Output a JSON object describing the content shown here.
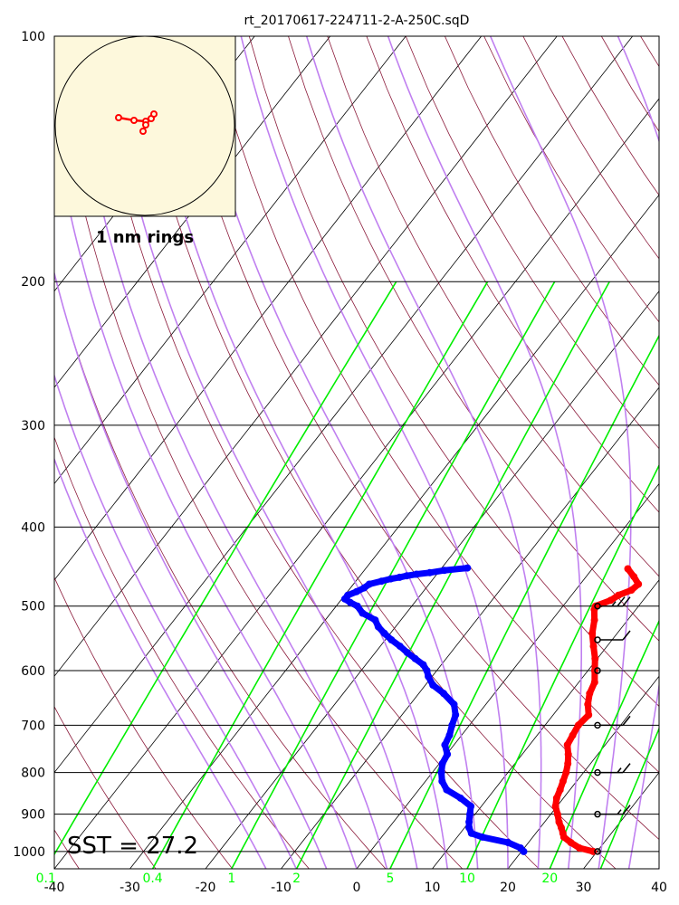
{
  "chart_data": {
    "type": "skew-t log-p sounding",
    "title": "rt_20170617-224711-2-A-250C.sqD",
    "pressure_ticks": [
      "100",
      "200",
      "300",
      "400",
      "500",
      "600",
      "700",
      "800",
      "900",
      "1000"
    ],
    "pressure_values": [
      100,
      200,
      300,
      400,
      500,
      600,
      700,
      800,
      900,
      1000
    ],
    "temperature_ticks": [
      "-40",
      "-30",
      "-20",
      "-10",
      "0",
      "10",
      "20",
      "30",
      "40"
    ],
    "temperature_values": [
      -40,
      -30,
      -20,
      -10,
      0,
      10,
      20,
      30,
      40
    ],
    "xlim": [
      -40,
      40
    ],
    "ylim": [
      1050,
      100
    ],
    "mixing_ratio_ticks": [
      "0.1",
      "0.4",
      "1",
      "2",
      "5",
      "10",
      "20"
    ],
    "mixing_ratio_values": [
      0.1,
      0.4,
      1,
      2,
      5,
      10,
      20
    ],
    "background_lines": {
      "isotherms": "black",
      "dry_adiabats": "maroon",
      "moist_adiabats": "violet",
      "mixing_ratio_lines": "lime"
    },
    "series": [
      {
        "name": "temperature",
        "color": "#ff0000",
        "points": [
          [
            1000,
            29.5
          ],
          [
            990,
            27.3
          ],
          [
            975,
            25.6
          ],
          [
            960,
            24.1
          ],
          [
            950,
            23.6
          ],
          [
            935,
            22.8
          ],
          [
            920,
            21.9
          ],
          [
            900,
            20.9
          ],
          [
            880,
            19.8
          ],
          [
            860,
            19.1
          ],
          [
            840,
            18.7
          ],
          [
            820,
            18.2
          ],
          [
            800,
            17.7
          ],
          [
            780,
            17.0
          ],
          [
            760,
            16.1
          ],
          [
            740,
            15.0
          ],
          [
            720,
            14.7
          ],
          [
            700,
            14.4
          ],
          [
            680,
            14.7
          ],
          [
            660,
            13.5
          ],
          [
            640,
            12.6
          ],
          [
            620,
            12.1
          ],
          [
            600,
            10.9
          ],
          [
            580,
            9.7
          ],
          [
            560,
            8.2
          ],
          [
            540,
            6.7
          ],
          [
            520,
            5.6
          ],
          [
            505,
            4.5
          ],
          [
            500,
            4.3
          ],
          [
            492,
            5.7
          ],
          [
            485,
            6.2
          ],
          [
            478,
            7.4
          ],
          [
            470,
            7.7
          ],
          [
            460,
            6.3
          ],
          [
            450,
            4.7
          ]
        ]
      },
      {
        "name": "dewpoint",
        "color": "#0000ff",
        "points": [
          [
            1000,
            20.3
          ],
          [
            990,
            19.5
          ],
          [
            975,
            17.3
          ],
          [
            960,
            13.3
          ],
          [
            950,
            11.5
          ],
          [
            935,
            10.6
          ],
          [
            920,
            10.0
          ],
          [
            900,
            9.3
          ],
          [
            880,
            8.6
          ],
          [
            860,
            6.4
          ],
          [
            840,
            3.7
          ],
          [
            820,
            2.2
          ],
          [
            800,
            1.2
          ],
          [
            780,
            0.4
          ],
          [
            760,
            0.1
          ],
          [
            740,
            -1.2
          ],
          [
            720,
            -1.6
          ],
          [
            700,
            -2.3
          ],
          [
            680,
            -2.9
          ],
          [
            660,
            -4.2
          ],
          [
            640,
            -6.7
          ],
          [
            625,
            -9.0
          ],
          [
            610,
            -10.5
          ],
          [
            600,
            -11.3
          ],
          [
            590,
            -12.4
          ],
          [
            580,
            -14.1
          ],
          [
            570,
            -15.8
          ],
          [
            560,
            -17.4
          ],
          [
            550,
            -19.2
          ],
          [
            540,
            -20.8
          ],
          [
            530,
            -22.3
          ],
          [
            520,
            -23.4
          ],
          [
            510,
            -25.8
          ],
          [
            500,
            -27.2
          ],
          [
            495,
            -28.5
          ],
          [
            490,
            -29.6
          ],
          [
            485,
            -29.6
          ],
          [
            480,
            -28.8
          ],
          [
            475,
            -28.2
          ],
          [
            470,
            -27.9
          ],
          [
            466,
            -26.6
          ],
          [
            463,
            -25.6
          ],
          [
            461,
            -24.6
          ],
          [
            459,
            -23.8
          ],
          [
            457,
            -22.7
          ],
          [
            455,
            -21.1
          ],
          [
            452,
            -19.4
          ],
          [
            449,
            -16.6
          ]
        ]
      }
    ],
    "hodograph": {
      "caption": "1 nm rings",
      "color": "#ff0000",
      "points": [
        [
          -29,
          -9
        ],
        [
          -12,
          -6
        ],
        [
          1,
          -5
        ],
        [
          7,
          -8
        ],
        [
          10,
          -13
        ],
        [
          1,
          -1
        ],
        [
          -2,
          6
        ]
      ]
    },
    "wind_barbs": [
      {
        "p": 1000,
        "speed_kt": 0
      },
      {
        "p": 900,
        "speed_kt": 15
      },
      {
        "p": 800,
        "speed_kt": 15
      },
      {
        "p": 700,
        "speed_kt": 10
      },
      {
        "p": 600,
        "speed_kt": 0
      },
      {
        "p": 550,
        "speed_kt": 10
      },
      {
        "p": 500,
        "speed_kt": 25
      }
    ],
    "annotation": "SST = 27.2"
  }
}
